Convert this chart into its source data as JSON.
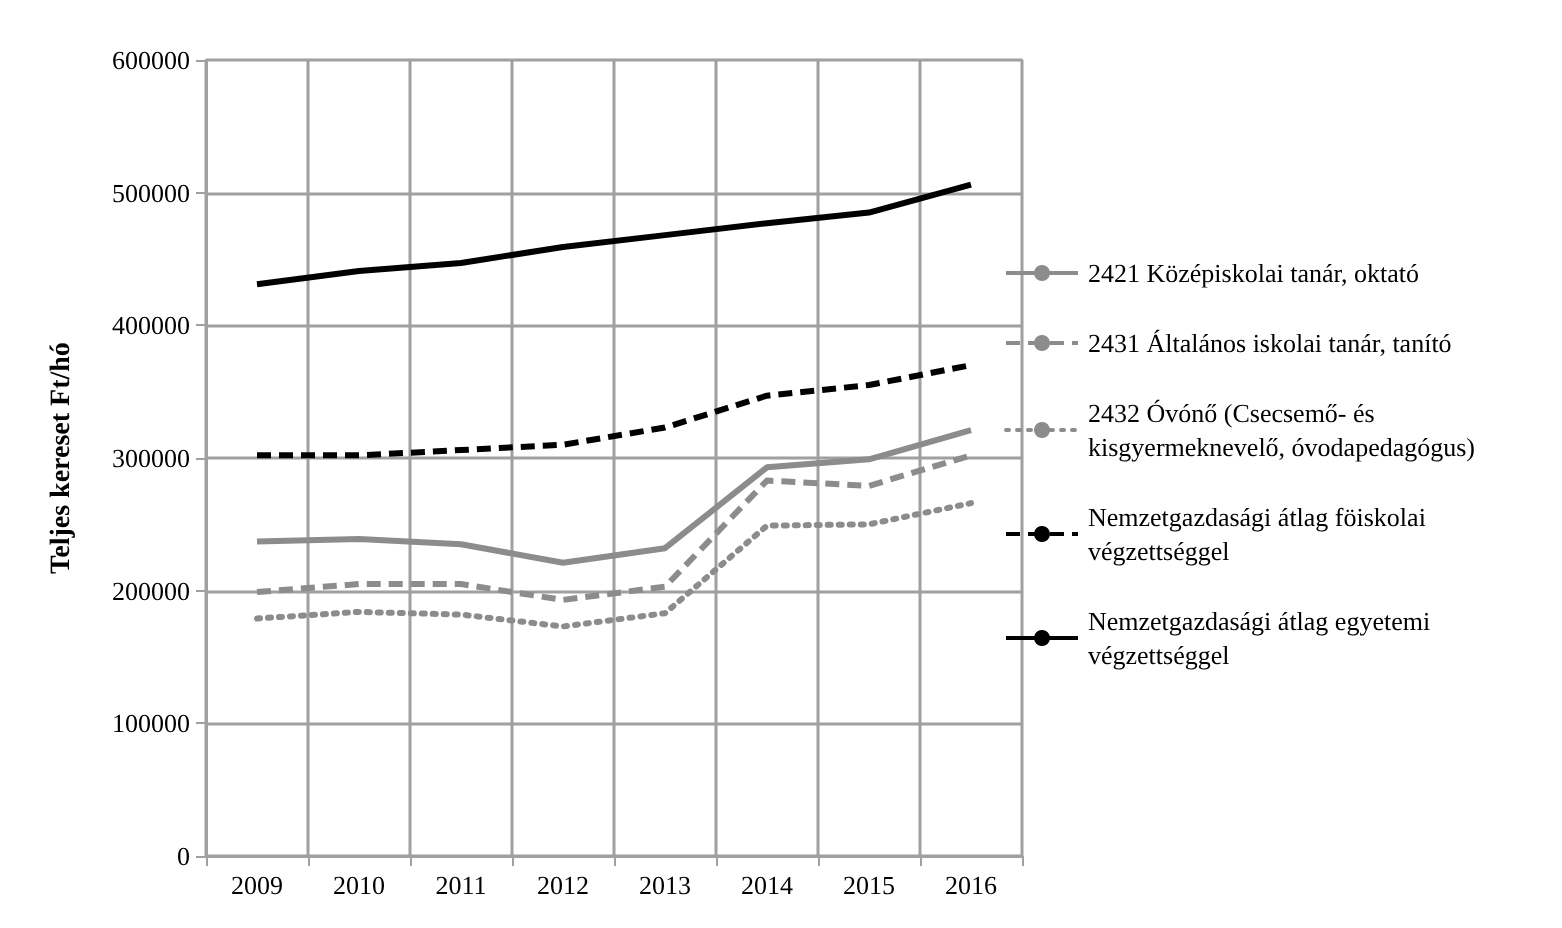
{
  "chart_data": {
    "type": "line",
    "ylabel": "Teljes kereset Ft/hó",
    "categories": [
      "2009",
      "2010",
      "2011",
      "2012",
      "2013",
      "2014",
      "2015",
      "2016"
    ],
    "ylim": [
      0,
      600000
    ],
    "yticks": [
      0,
      100000,
      200000,
      300000,
      400000,
      500000,
      600000
    ],
    "grid": true,
    "legend": "right",
    "marker": "none",
    "series": [
      {
        "name": "2421 Középiskolai tanár, oktató",
        "color": "#8c8c8c",
        "line_style": "solid",
        "values": [
          237000,
          239000,
          235000,
          221000,
          232000,
          293000,
          299000,
          321000
        ]
      },
      {
        "name": "2431 Általános iskolai tanár, tanító",
        "color": "#8c8c8c",
        "line_style": "dashed",
        "values": [
          199000,
          205000,
          205000,
          193000,
          203000,
          283000,
          279000,
          302000
        ]
      },
      {
        "name": "2432 Óvónő (Csecsemő- és kisgyermeknevelő, óvodapedagógus)",
        "color": "#8c8c8c",
        "line_style": "dotted",
        "values": [
          179000,
          184000,
          182000,
          173000,
          183000,
          249000,
          250000,
          266000
        ]
      },
      {
        "name": "Nemzetgazdasági átlag föiskolai végzettséggel",
        "color": "#000000",
        "line_style": "dashed",
        "values": [
          302000,
          302000,
          306000,
          310000,
          323000,
          347000,
          355000,
          370000
        ]
      },
      {
        "name": "Nemzetgazdasági átlag egyetemi végzettséggel",
        "color": "#000000",
        "line_style": "solid",
        "values": [
          431000,
          441000,
          447000,
          459000,
          468000,
          477000,
          485000,
          506000
        ]
      }
    ]
  }
}
